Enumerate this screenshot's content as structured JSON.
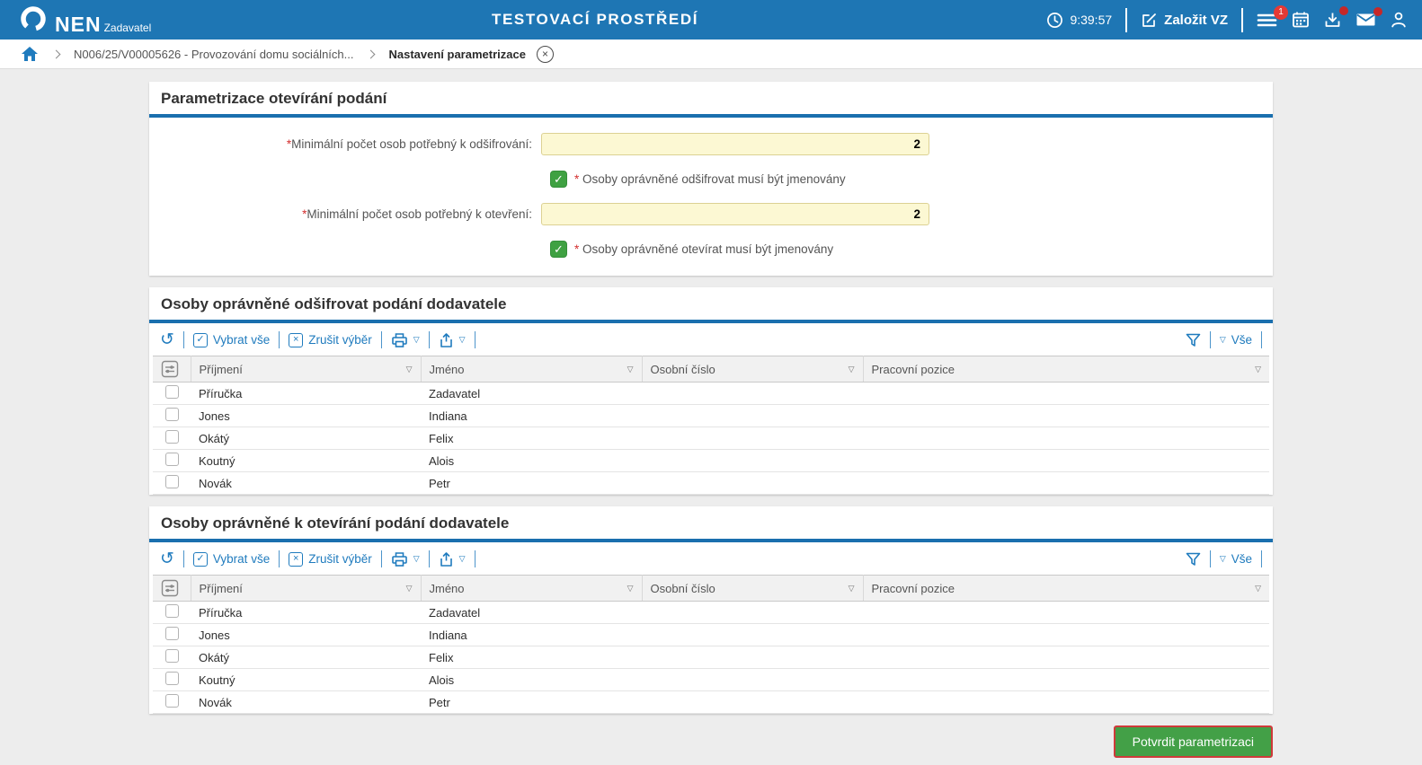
{
  "colors": {
    "header_blue": "#1E76B4",
    "accent_blue": "#1F7BBE",
    "rule_blue": "#1A6FAE",
    "badge_red": "#E53935",
    "required_red": "#D32F2F",
    "checkbox_green": "#3FA142",
    "button_green": "#43A047",
    "button_border_red": "#CF3A3A",
    "input_yellow": "#FCF8D3"
  },
  "icons": {
    "check": "✓",
    "cross": "×",
    "caret_down": "▽",
    "refresh": "↺",
    "close": "×"
  },
  "header": {
    "app_name": "NEN",
    "app_subtitle": "Zadavatel",
    "environment_title": "TESTOVACÍ PROSTŘEDÍ",
    "clock": "9:39:57",
    "create_vz_label": "Založit VZ",
    "menu_badge": "1"
  },
  "breadcrumb": {
    "contract": "N006/25/V00005626 - Provozování domu sociálních...",
    "current": "Nastavení parametrizace"
  },
  "form": {
    "title": "Parametrizace otevírání podání",
    "required_marker": "*",
    "fields": [
      {
        "label": "Minimální počet osob potřebný k odšifrování:",
        "value": "2"
      },
      {
        "label": "Minimální počet osob potřebný k otevření:",
        "value": "2"
      }
    ],
    "checkboxes": [
      {
        "label": "Osoby oprávněné odšifrovat musí být jmenovány",
        "checked": true
      },
      {
        "label": "Osoby oprávněné otevírat musí být jmenovány",
        "checked": true
      }
    ]
  },
  "toolbar": {
    "select_all": "Vybrat vše",
    "clear_selection": "Zrušit výběr",
    "filter_all": "Vše"
  },
  "table_columns": [
    "Příjmení",
    "Jméno",
    "Osobní číslo",
    "Pracovní pozice"
  ],
  "tables": [
    {
      "title": "Osoby oprávněné odšifrovat podání dodavatele",
      "rows": [
        [
          "Příručka",
          "Zadavatel",
          "",
          ""
        ],
        [
          "Jones",
          "Indiana",
          "",
          ""
        ],
        [
          "Okátý",
          "Felix",
          "",
          ""
        ],
        [
          "Koutný",
          "Alois",
          "",
          ""
        ],
        [
          "Novák",
          "Petr",
          "",
          ""
        ]
      ]
    },
    {
      "title": "Osoby oprávněné k otevírání podání dodavatele",
      "rows": [
        [
          "Příručka",
          "Zadavatel",
          "",
          ""
        ],
        [
          "Jones",
          "Indiana",
          "",
          ""
        ],
        [
          "Okátý",
          "Felix",
          "",
          ""
        ],
        [
          "Koutný",
          "Alois",
          "",
          ""
        ],
        [
          "Novák",
          "Petr",
          "",
          ""
        ]
      ]
    }
  ],
  "footer": {
    "confirm_label": "Potvrdit parametrizaci"
  }
}
